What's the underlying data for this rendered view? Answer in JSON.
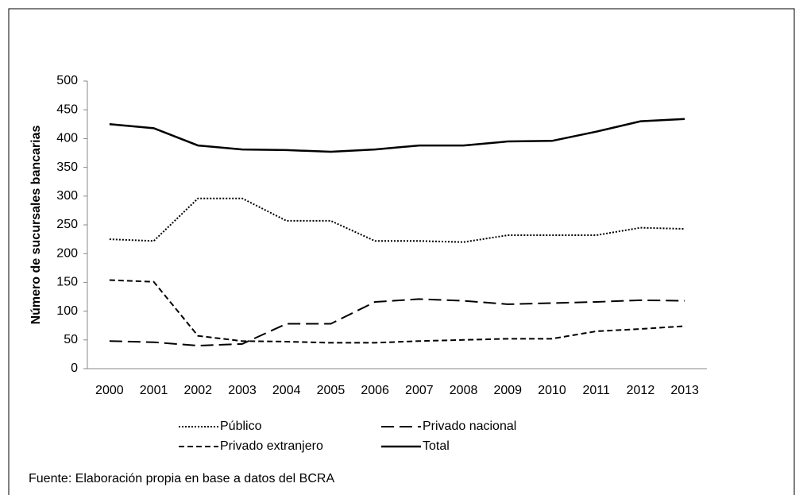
{
  "chart_data": {
    "type": "line",
    "y_label": "Número de sucursales bancarias",
    "source": "Fuente: Elaboración propia en base a datos del BCRA",
    "categories": [
      "2000",
      "2001",
      "2002",
      "2003",
      "2004",
      "2005",
      "2006",
      "2007",
      "2008",
      "2009",
      "2010",
      "2011",
      "2012",
      "2013"
    ],
    "series": [
      {
        "name": "Público",
        "color": "#000000",
        "dash": "dotted",
        "values": [
          225,
          222,
          296,
          296,
          257,
          257,
          222,
          222,
          220,
          232,
          232,
          232,
          245,
          243
        ]
      },
      {
        "name": "Privado nacional",
        "color": "#000000",
        "dash": "long-dash",
        "values": [
          48,
          46,
          40,
          43,
          78,
          78,
          116,
          121,
          118,
          112,
          114,
          116,
          119,
          118
        ]
      },
      {
        "name": "Privado extranjero",
        "color": "#000000",
        "dash": "dash",
        "values": [
          154,
          151,
          57,
          48,
          47,
          45,
          45,
          48,
          50,
          52,
          52,
          65,
          69,
          74
        ]
      },
      {
        "name": "Total",
        "color": "#000000",
        "dash": "solid",
        "values": [
          425,
          418,
          388,
          381,
          380,
          377,
          381,
          388,
          388,
          395,
          396,
          412,
          430,
          434
        ]
      }
    ],
    "ylim": [
      0,
      500
    ],
    "yticks": [
      0,
      50,
      100,
      150,
      200,
      250,
      300,
      350,
      400,
      450,
      500
    ],
    "grid": false
  }
}
